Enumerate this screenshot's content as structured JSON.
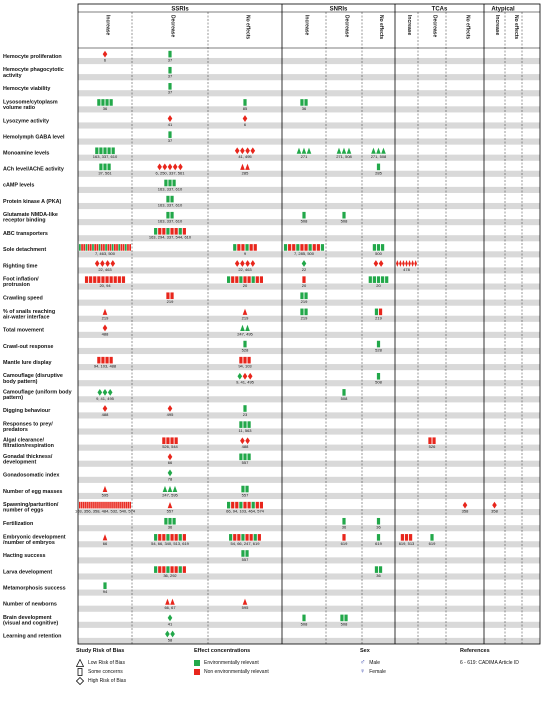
{
  "colors": {
    "environmentally_relevant": "#22a84a",
    "non_environmentally_relevant": "#e8261c",
    "grid": "#000000",
    "stripe": "#d9d9d9",
    "female": "#2f3fa8"
  },
  "groups": [
    {
      "name": "SSRIs",
      "columns": [
        "Increase",
        "Decrease",
        "No effects"
      ]
    },
    {
      "name": "SNRIs",
      "columns": [
        "Increase",
        "Decrease",
        "No effects"
      ]
    },
    {
      "name": "TCAs",
      "columns": [
        "Increase",
        "Decrease",
        "No effects"
      ]
    },
    {
      "name": "Atypical",
      "columns": [
        "Increase",
        "No effects"
      ]
    }
  ],
  "rows": [
    "Hemocyte proliferation",
    "Hemocyte phagocytotic activity",
    "Hemocyte viability",
    "Lysosome/cytoplasm volume ratio",
    "Lysozyme activity",
    "Hemolymph GABA level",
    "Monoamine levels",
    "ACh level/AChE activity",
    "cAMP levels",
    "Protein kinase A (PKA)",
    "Glutamate NMDA-like receptor binding",
    "ABC  transporters",
    "Sole detachment",
    "Righting time",
    "Foot inflation/ protrusion",
    "Crawling speed",
    "% of snails reaching air-water interface",
    "Total movement",
    "Crawl-out response",
    "Mantle lure display",
    "Camouflage (disruptive body pattern)",
    "Camouflage (uniform body pattern)",
    "Digging behaviour",
    "Responses to prey/ predators",
    "Algal clearance/ filtration/respiration",
    "Gonadal thickness/ development",
    "Gonadosomatic index",
    "Number of egg masses",
    "Spawning/parturition/ number of eggs",
    "Fertilization",
    "Embryonic development /number of embryos",
    "Hacting success",
    "Larva development",
    "Metamorphosis success",
    "Number of newborns",
    "Brain development (visual and cognitive)",
    "Learning and retention"
  ],
  "marks": [
    {
      "row": 0,
      "col": 0,
      "shape": "diamond",
      "color": "red",
      "n": 1,
      "refs": "6"
    },
    {
      "row": 0,
      "col": 1,
      "shape": "rect",
      "color": "green",
      "n": 1,
      "refs": "37"
    },
    {
      "row": 1,
      "col": 1,
      "shape": "rect",
      "color": "green",
      "n": 1,
      "refs": "37"
    },
    {
      "row": 2,
      "col": 1,
      "shape": "rect",
      "color": "green",
      "n": 1,
      "refs": "37"
    },
    {
      "row": 3,
      "col": 0,
      "shape": "rect",
      "color": "green",
      "n": 4,
      "refs": "36"
    },
    {
      "row": 3,
      "col": 2,
      "shape": "rect",
      "color": "green",
      "n": 1,
      "refs": "85"
    },
    {
      "row": 3,
      "col": 3,
      "shape": "rect",
      "color": "green",
      "n": 2,
      "refs": "36"
    },
    {
      "row": 4,
      "col": 1,
      "shape": "diamond",
      "color": "red",
      "n": 1,
      "refs": "41"
    },
    {
      "row": 4,
      "col": 2,
      "shape": "diamond",
      "color": "red",
      "n": 1,
      "refs": "6"
    },
    {
      "row": 5,
      "col": 1,
      "shape": "rect",
      "color": "green",
      "n": 1,
      "refs": "37"
    },
    {
      "row": 6,
      "col": 0,
      "shape": "rect",
      "color": "green",
      "n": 5,
      "refs": "163, 337, 610"
    },
    {
      "row": 6,
      "col": 2,
      "shape": "diamond",
      "color": "red",
      "n": 4,
      "refs": "41, 495"
    },
    {
      "row": 6,
      "col": 3,
      "shape": "triangle",
      "color": "green",
      "n": 3,
      "refs": "271"
    },
    {
      "row": 6,
      "col": 4,
      "shape": "triangle",
      "color": "green",
      "n": 3,
      "refs": "271, 508"
    },
    {
      "row": 6,
      "col": 5,
      "shape": "triangle",
      "color": "green",
      "n": 3,
      "refs": "271, 508"
    },
    {
      "row": 7,
      "col": 0,
      "shape": "rect",
      "color": "green",
      "n": 3,
      "refs": "37, 561"
    },
    {
      "row": 7,
      "col": 1,
      "shape": "diamond",
      "color": "red",
      "n": 5,
      "refs": "6, 250, 337, 561"
    },
    {
      "row": 7,
      "col": 2,
      "shape": "triangle",
      "color": "red",
      "n": 2,
      "refs": "285"
    },
    {
      "row": 7,
      "col": 5,
      "shape": "rect",
      "color": "green",
      "n": 1,
      "refs": "285"
    },
    {
      "row": 8,
      "col": 1,
      "shape": "rect",
      "color": "green",
      "n": 3,
      "refs": "163, 337, 610"
    },
    {
      "row": 9,
      "col": 1,
      "shape": "rect",
      "color": "green",
      "n": 2,
      "refs": "163, 337, 610"
    },
    {
      "row": 10,
      "col": 1,
      "shape": "rect",
      "color": "green",
      "n": 2,
      "refs": "163, 337, 610"
    },
    {
      "row": 10,
      "col": 3,
      "shape": "rect",
      "color": "green",
      "n": 1,
      "refs": "508"
    },
    {
      "row": 10,
      "col": 4,
      "shape": "rect",
      "color": "green",
      "n": 1,
      "refs": "508"
    },
    {
      "row": 11,
      "col": 1,
      "shape": "rect",
      "color": "mixed",
      "n": 8,
      "refs": "163, 294, 337, 544, 610"
    },
    {
      "row": 12,
      "col": 0,
      "shape": "rect",
      "color": "mixed",
      "n": 24,
      "refs": "7,   463,   500"
    },
    {
      "row": 12,
      "col": 2,
      "shape": "rect",
      "color": "mixed",
      "n": 6,
      "refs": "9"
    },
    {
      "row": 12,
      "col": 3,
      "shape": "rect",
      "color": "mixed",
      "n": 10,
      "refs": "7,   285,   500"
    },
    {
      "row": 12,
      "col": 5,
      "shape": "rect",
      "color": "green",
      "n": 3,
      "refs": "500"
    },
    {
      "row": 13,
      "col": 0,
      "shape": "diamond",
      "color": "red",
      "n": 4,
      "refs": "22,   463"
    },
    {
      "row": 13,
      "col": 2,
      "shape": "diamond",
      "color": "red",
      "n": 4,
      "refs": "22,   463"
    },
    {
      "row": 13,
      "col": 3,
      "shape": "diamond",
      "color": "green",
      "n": 1,
      "refs": "22"
    },
    {
      "row": 13,
      "col": 5,
      "shape": "diamond",
      "color": "red",
      "n": 2,
      "refs": ""
    },
    {
      "row": 13,
      "col": 6,
      "shape": "diamond",
      "color": "red",
      "n": 7,
      "refs": "478"
    },
    {
      "row": 14,
      "col": 0,
      "shape": "rect",
      "color": "red",
      "n": 10,
      "refs": "20,    94"
    },
    {
      "row": 14,
      "col": 2,
      "shape": "rect",
      "color": "mixed",
      "n": 9,
      "refs": "20"
    },
    {
      "row": 14,
      "col": 3,
      "shape": "rect",
      "color": "red",
      "n": 1,
      "refs": "20"
    },
    {
      "row": 14,
      "col": 5,
      "shape": "rect",
      "color": "green",
      "n": 5,
      "refs": "20"
    },
    {
      "row": 15,
      "col": 1,
      "shape": "rect",
      "color": "red",
      "n": 2,
      "refs": "219"
    },
    {
      "row": 15,
      "col": 3,
      "shape": "rect",
      "color": "green",
      "n": 2,
      "refs": "219"
    },
    {
      "row": 16,
      "col": 0,
      "shape": "triangle",
      "color": "red",
      "n": 1,
      "refs": "219"
    },
    {
      "row": 16,
      "col": 2,
      "shape": "triangle",
      "color": "red",
      "n": 1,
      "refs": "219"
    },
    {
      "row": 16,
      "col": 3,
      "shape": "rect",
      "color": "green",
      "n": 2,
      "refs": "219"
    },
    {
      "row": 16,
      "col": 5,
      "shape": "rect",
      "color": "mixed",
      "n": 2,
      "refs": "219"
    },
    {
      "row": 17,
      "col": 0,
      "shape": "diamond",
      "color": "red",
      "n": 1,
      "refs": "488"
    },
    {
      "row": 17,
      "col": 2,
      "shape": "triangle",
      "color": "green",
      "n": 2,
      "refs": "247, 495"
    },
    {
      "row": 18,
      "col": 2,
      "shape": "rect",
      "color": "green",
      "n": 1,
      "refs": "528"
    },
    {
      "row": 18,
      "col": 5,
      "shape": "rect",
      "color": "green",
      "n": 1,
      "refs": "528"
    },
    {
      "row": 19,
      "col": 0,
      "shape": "rect",
      "color": "red",
      "n": 4,
      "refs": "94, 103,   488"
    },
    {
      "row": 19,
      "col": 2,
      "shape": "rect",
      "color": "red",
      "n": 3,
      "refs": "94, 103"
    },
    {
      "row": 20,
      "col": 2,
      "shape": "diamond",
      "color": "mixed",
      "n": 3,
      "refs": "9, 41, 495"
    },
    {
      "row": 20,
      "col": 5,
      "shape": "rect",
      "color": "green",
      "n": 1,
      "refs": "508"
    },
    {
      "row": 21,
      "col": 0,
      "shape": "diamond",
      "color": "green",
      "n": 3,
      "refs": "9, 41, 495"
    },
    {
      "row": 21,
      "col": 4,
      "shape": "rect",
      "color": "green",
      "n": 1,
      "refs": "508"
    },
    {
      "row": 22,
      "col": 0,
      "shape": "diamond",
      "color": "red",
      "n": 1,
      "refs": "488"
    },
    {
      "row": 22,
      "col": 1,
      "shape": "diamond",
      "color": "red",
      "n": 1,
      "refs": "495"
    },
    {
      "row": 22,
      "col": 2,
      "shape": "rect",
      "color": "green",
      "n": 1,
      "refs": "23"
    },
    {
      "row": 23,
      "col": 2,
      "shape": "rect",
      "color": "green",
      "n": 3,
      "refs": "11, 563"
    },
    {
      "row": 24,
      "col": 1,
      "shape": "rect",
      "color": "red",
      "n": 4,
      "refs": "526,   544"
    },
    {
      "row": 24,
      "col": 2,
      "shape": "diamond",
      "color": "red",
      "n": 2,
      "refs": "488"
    },
    {
      "row": 24,
      "col": 7,
      "shape": "rect",
      "color": "red",
      "n": 2,
      "refs": "526"
    },
    {
      "row": 25,
      "col": 1,
      "shape": "diamond",
      "color": "red",
      "n": 1,
      "refs": "66"
    },
    {
      "row": 25,
      "col": 2,
      "shape": "rect",
      "color": "green",
      "n": 3,
      "refs": "557"
    },
    {
      "row": 26,
      "col": 1,
      "shape": "diamond",
      "color": "green",
      "n": 1,
      "refs": "78"
    },
    {
      "row": 27,
      "col": 0,
      "shape": "triangle",
      "color": "red",
      "n": 1,
      "refs": "595"
    },
    {
      "row": 27,
      "col": 1,
      "shape": "triangle",
      "color": "green",
      "n": 3,
      "refs": "247, 595"
    },
    {
      "row": 27,
      "col": 2,
      "shape": "rect",
      "color": "green",
      "n": 2,
      "refs": "557"
    },
    {
      "row": 28,
      "col": 0,
      "shape": "rect",
      "color": "red",
      "n": 26,
      "refs": "103,   356,   358,   484,   532, 540, 574"
    },
    {
      "row": 28,
      "col": 1,
      "shape": "triangle",
      "color": "red",
      "n": 1,
      "refs": "557"
    },
    {
      "row": 28,
      "col": 2,
      "shape": "rect",
      "color": "mixed",
      "n": 9,
      "refs": "66, 94, 103, 464,   574"
    },
    {
      "row": 28,
      "col": 8,
      "shape": "diamond",
      "color": "red",
      "n": 1,
      "refs": "358"
    },
    {
      "row": 28,
      "col": 9,
      "shape": "diamond",
      "color": "red",
      "n": 1,
      "refs": "358"
    },
    {
      "row": 29,
      "col": 1,
      "shape": "rect",
      "color": "green",
      "n": 3,
      "refs": "36"
    },
    {
      "row": 29,
      "col": 4,
      "shape": "rect",
      "color": "green",
      "n": 1,
      "refs": "36"
    },
    {
      "row": 29,
      "col": 5,
      "shape": "rect",
      "color": "green",
      "n": 1,
      "refs": "36"
    },
    {
      "row": 30,
      "col": 0,
      "shape": "triangle",
      "color": "red",
      "n": 1,
      "refs": "66"
    },
    {
      "row": 30,
      "col": 1,
      "shape": "rect",
      "color": "mixed",
      "n": 8,
      "refs": "54, 66, 340,   513,   619"
    },
    {
      "row": 30,
      "col": 2,
      "shape": "rect",
      "color": "mixed",
      "n": 8,
      "refs": "54, 66, 247, 619"
    },
    {
      "row": 30,
      "col": 4,
      "shape": "rect",
      "color": "red",
      "n": 1,
      "refs": "619"
    },
    {
      "row": 30,
      "col": 5,
      "shape": "rect",
      "color": "green",
      "n": 1,
      "refs": "619"
    },
    {
      "row": 30,
      "col": 6,
      "shape": "rect",
      "color": "red",
      "n": 3,
      "refs": "619, 513"
    },
    {
      "row": 30,
      "col": 7,
      "shape": "rect",
      "color": "green",
      "n": 1,
      "refs": "619"
    },
    {
      "row": 31,
      "col": 2,
      "shape": "rect",
      "color": "green",
      "n": 2,
      "refs": "557"
    },
    {
      "row": 32,
      "col": 1,
      "shape": "rect",
      "color": "mixed",
      "n": 8,
      "refs": "36,   292"
    },
    {
      "row": 32,
      "col": 5,
      "shape": "rect",
      "color": "green",
      "n": 2,
      "refs": "36"
    },
    {
      "row": 33,
      "col": 0,
      "shape": "rect",
      "color": "mixed",
      "n": 1,
      "refs": "94"
    },
    {
      "row": 34,
      "col": 1,
      "shape": "triangle",
      "color": "red",
      "n": 2,
      "refs": "66,   67"
    },
    {
      "row": 34,
      "col": 2,
      "shape": "triangle",
      "color": "red",
      "n": 1,
      "refs": "595"
    },
    {
      "row": 35,
      "col": 1,
      "shape": "diamond",
      "color": "green",
      "n": 1,
      "refs": "41"
    },
    {
      "row": 35,
      "col": 3,
      "shape": "rect",
      "color": "green",
      "n": 1,
      "refs": "508"
    },
    {
      "row": 35,
      "col": 4,
      "shape": "rect",
      "color": "green",
      "n": 2,
      "refs": "508"
    },
    {
      "row": 36,
      "col": 1,
      "shape": "diamond",
      "color": "green",
      "n": 2,
      "refs": "58"
    }
  ],
  "legend": {
    "bias": {
      "title": "Study Risk of Bias",
      "items": [
        "Low  Risk of Bias",
        "Some concerns",
        "High Risk of Bias"
      ]
    },
    "conc": {
      "title": "Effect concentrations",
      "items": [
        "Environmentally relevant",
        "Non environmentally relevant"
      ]
    },
    "sex": {
      "title": "Sex",
      "items": [
        "Male",
        "Female"
      ]
    },
    "refs": {
      "title": "References",
      "note": "6 - 619: CADIMA Article ID"
    }
  }
}
